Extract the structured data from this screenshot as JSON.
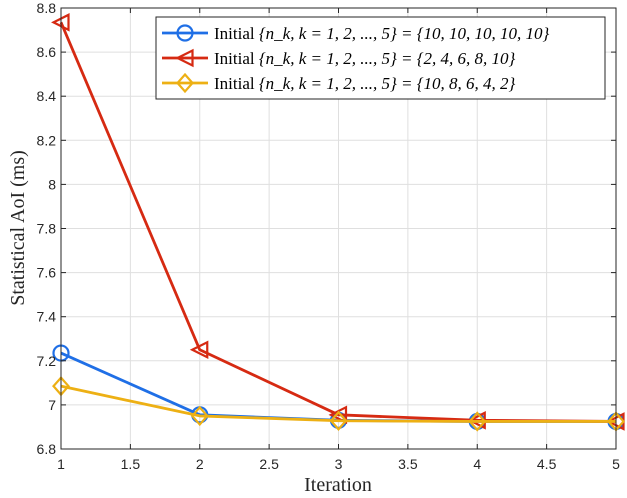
{
  "chart_data": {
    "type": "line",
    "title": "",
    "xlabel": "Iteration",
    "ylabel": "Statistical AoI (ms)",
    "xlim": [
      1,
      5
    ],
    "ylim": [
      6.8,
      8.8
    ],
    "grid": true,
    "legend_position": "top-right",
    "x_ticks": [
      {
        "value": 1,
        "label": "1"
      },
      {
        "value": 1.5,
        "label": "1.5"
      },
      {
        "value": 2,
        "label": "2"
      },
      {
        "value": 2.5,
        "label": "2.5"
      },
      {
        "value": 3,
        "label": "3"
      },
      {
        "value": 3.5,
        "label": "3.5"
      },
      {
        "value": 4,
        "label": "4"
      },
      {
        "value": 4.5,
        "label": "4.5"
      },
      {
        "value": 5,
        "label": "5"
      }
    ],
    "y_ticks": [
      {
        "value": 6.8,
        "label": "6.8"
      },
      {
        "value": 7.0,
        "label": "7"
      },
      {
        "value": 7.2,
        "label": "7.2"
      },
      {
        "value": 7.4,
        "label": "7.4"
      },
      {
        "value": 7.6,
        "label": "7.6"
      },
      {
        "value": 7.8,
        "label": "7.8"
      },
      {
        "value": 8.0,
        "label": "8"
      },
      {
        "value": 8.2,
        "label": "8.2"
      },
      {
        "value": 8.4,
        "label": "8.4"
      },
      {
        "value": 8.6,
        "label": "8.6"
      },
      {
        "value": 8.8,
        "label": "8.8"
      }
    ],
    "x": [
      1,
      2,
      3,
      4,
      5
    ],
    "series": [
      {
        "name": "Initial {n_k, k = 1, 2, ..., 5} = {10, 10, 10, 10, 10}",
        "legend_prefix": "Initial ",
        "legend_math": "{n_k, k = 1, 2, ..., 5} = {10, 10, 10, 10, 10}",
        "marker": "circle",
        "color": "#1F6FE6",
        "values": [
          7.235,
          6.955,
          6.93,
          6.925,
          6.925
        ]
      },
      {
        "name": "Initial {n_k, k = 1, 2, ..., 5} = {2, 4, 6, 8, 10}",
        "legend_prefix": "Initial ",
        "legend_math": "{n_k, k = 1, 2, ..., 5} = {2, 4, 6, 8, 10}",
        "marker": "triangle-left",
        "color": "#D62A12",
        "values": [
          8.735,
          7.25,
          6.955,
          6.93,
          6.925
        ]
      },
      {
        "name": "Initial {n_k, k = 1, 2, ..., 5} = {10, 8, 6, 4, 2}",
        "legend_prefix": "Initial ",
        "legend_math": "{n_k, k = 1, 2, ..., 5} = {10, 8, 6, 4, 2}",
        "marker": "diamond",
        "color": "#EDB014",
        "values": [
          7.085,
          6.95,
          6.928,
          6.925,
          6.925
        ]
      }
    ]
  }
}
